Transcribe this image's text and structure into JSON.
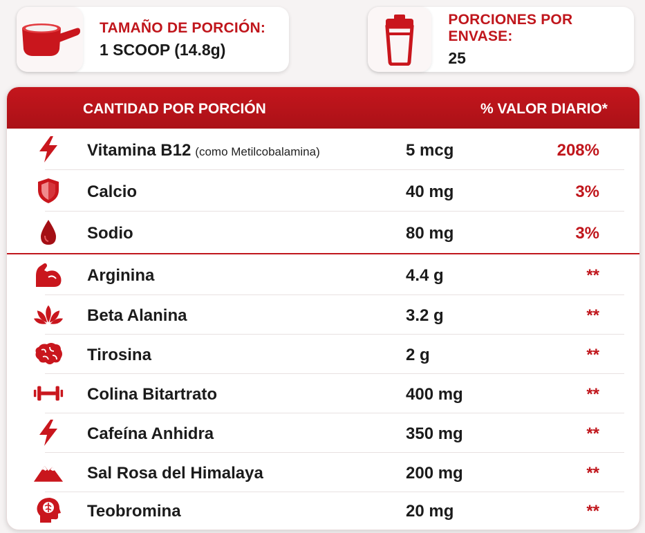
{
  "serving": {
    "label": "TAMAÑO DE PORCIÓN:",
    "value": "1 SCOOP (14.8g)",
    "icon": "scoop-icon"
  },
  "servings_per_container": {
    "label": "PORCIONES POR ENVASE:",
    "value": "25",
    "icon": "shaker-icon"
  },
  "table": {
    "header_left": "CANTIDAD POR PORCIÓN",
    "header_right": "% VALOR DIARIO*",
    "rows": [
      {
        "name": "Vitamina B12",
        "note": "(como Metilcobalamina)",
        "amount": "5 mcg",
        "dv": "208%",
        "icon": "lightning-icon"
      },
      {
        "name": "Calcio",
        "note": "",
        "amount": "40 mg",
        "dv": "3%",
        "icon": "shield-icon"
      },
      {
        "name": "Sodio",
        "note": "",
        "amount": "80 mg",
        "dv": "3%",
        "icon": "drop-icon"
      },
      {
        "name": "Arginina",
        "note": "",
        "amount": "4.4 g",
        "dv": "**",
        "icon": "muscle-arm-icon"
      },
      {
        "name": "Beta Alanina",
        "note": "",
        "amount": "3.2 g",
        "dv": "**",
        "icon": "lotus-icon"
      },
      {
        "name": "Tirosina",
        "note": "",
        "amount": "2 g",
        "dv": "**",
        "icon": "brain-icon"
      },
      {
        "name": "Colina Bitartrato",
        "note": "",
        "amount": "400 mg",
        "dv": "**",
        "icon": "dumbbell-icon"
      },
      {
        "name": "Cafeína Anhidra",
        "note": "",
        "amount": "350 mg",
        "dv": "**",
        "icon": "lightning-icon"
      },
      {
        "name": "Sal Rosa del Himalaya",
        "note": "",
        "amount": "200 mg",
        "dv": "**",
        "icon": "mountain-icon"
      },
      {
        "name": "Teobromina",
        "note": "",
        "amount": "20 mg",
        "dv": "**",
        "icon": "head-brain-icon"
      }
    ]
  },
  "colors": {
    "accent": "#c0161c",
    "header_bg": "#b8141a"
  }
}
